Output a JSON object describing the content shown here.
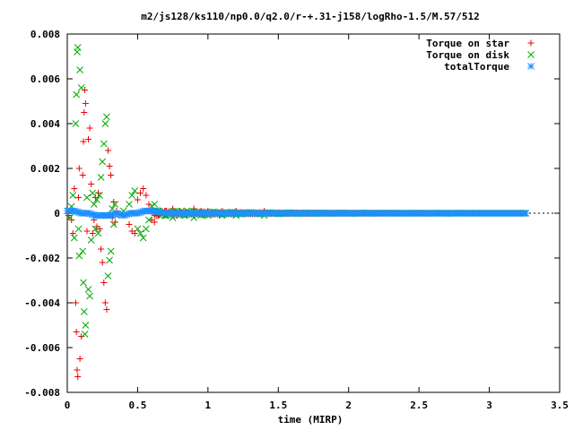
{
  "chart_data": {
    "type": "scatter",
    "title": "m2/js128/ks110/np0.0/q2.0/r-+.31-j158/logRho-1.5/M.57/512",
    "xlabel": "time (MIRP)",
    "ylabel": "",
    "xlim": [
      0,
      3.5
    ],
    "ylim": [
      -0.008,
      0.008
    ],
    "x_ticks": [
      "0",
      "0.5",
      "1",
      "1.5",
      "2",
      "2.5",
      "3",
      "3.5"
    ],
    "y_ticks": [
      "0.008",
      "0.006",
      "0.004",
      "0.002",
      "0",
      "-0.002",
      "-0.004",
      "-0.006",
      "-0.008"
    ],
    "grid": false,
    "legend_position": "top-right",
    "series": [
      {
        "name": "Torque on star",
        "marker": "plus",
        "color": "#ee0000",
        "points": [
          [
            0.01,
            -0.0001
          ],
          [
            0.02,
            0.0001
          ],
          [
            0.03,
            -0.0003
          ],
          [
            0.04,
            -0.0009
          ],
          [
            0.05,
            0.0011
          ],
          [
            0.06,
            -0.004
          ],
          [
            0.065,
            -0.0053
          ],
          [
            0.07,
            -0.007
          ],
          [
            0.075,
            -0.0073
          ],
          [
            0.08,
            0.0007
          ],
          [
            0.085,
            0.002
          ],
          [
            0.09,
            -0.0065
          ],
          [
            0.1,
            -0.0055
          ],
          [
            0.11,
            0.0017
          ],
          [
            0.115,
            0.0032
          ],
          [
            0.12,
            0.0045
          ],
          [
            0.125,
            0.0055
          ],
          [
            0.13,
            0.0049
          ],
          [
            0.14,
            -0.0008
          ],
          [
            0.15,
            0.0033
          ],
          [
            0.16,
            0.0038
          ],
          [
            0.17,
            0.0013
          ],
          [
            0.18,
            -0.0009
          ],
          [
            0.19,
            -0.0003
          ],
          [
            0.2,
            0.0007
          ],
          [
            0.21,
            -0.0006
          ],
          [
            0.22,
            0.0009
          ],
          [
            0.23,
            -0.0007
          ],
          [
            0.24,
            -0.0016
          ],
          [
            0.25,
            -0.0022
          ],
          [
            0.26,
            -0.0031
          ],
          [
            0.27,
            -0.004
          ],
          [
            0.28,
            -0.0043
          ],
          [
            0.29,
            0.0028
          ],
          [
            0.3,
            0.0021
          ],
          [
            0.31,
            0.0017
          ],
          [
            0.32,
            -0.0002
          ],
          [
            0.33,
            0.0005
          ],
          [
            0.34,
            -0.0004
          ],
          [
            0.35,
            0.0001
          ],
          [
            0.4,
            -0.0001
          ],
          [
            0.44,
            -0.0005
          ],
          [
            0.46,
            -0.0008
          ],
          [
            0.48,
            -0.0009
          ],
          [
            0.5,
            0.0006
          ],
          [
            0.52,
            0.0009
          ],
          [
            0.54,
            0.0011
          ],
          [
            0.56,
            0.0008
          ],
          [
            0.58,
            0.0004
          ],
          [
            0.6,
            -0.0003
          ],
          [
            0.62,
            -0.0004
          ],
          [
            0.65,
            -0.0001
          ],
          [
            0.7,
            0.0001
          ],
          [
            0.75,
            0.0002
          ],
          [
            0.8,
            0.0001
          ],
          [
            0.85,
            -0.0001
          ],
          [
            0.9,
            0.0002
          ],
          [
            0.95,
            0.0001
          ],
          [
            1.0,
            0.0001
          ],
          [
            1.1,
            0.0001
          ],
          [
            1.2,
            0.0001
          ],
          [
            1.3,
            0.0
          ],
          [
            1.4,
            0.0001
          ],
          [
            1.5,
            0.0
          ],
          [
            1.7,
            0.0
          ],
          [
            1.9,
            0.0
          ],
          [
            2.1,
            0.0
          ],
          [
            2.3,
            0.0
          ],
          [
            2.5,
            0.0
          ],
          [
            2.7,
            0.0
          ],
          [
            2.9,
            0.0
          ],
          [
            3.1,
            0.0
          ],
          [
            3.25,
            0.0
          ]
        ]
      },
      {
        "name": "Torque on disk",
        "marker": "cross",
        "color": "#00aa00",
        "points": [
          [
            0.01,
            0.0001
          ],
          [
            0.02,
            -0.0002
          ],
          [
            0.03,
            0.0003
          ],
          [
            0.04,
            0.0008
          ],
          [
            0.05,
            -0.0011
          ],
          [
            0.06,
            0.004
          ],
          [
            0.065,
            0.0053
          ],
          [
            0.07,
            0.0072
          ],
          [
            0.075,
            0.0074
          ],
          [
            0.08,
            -0.0007
          ],
          [
            0.085,
            -0.0019
          ],
          [
            0.09,
            0.0064
          ],
          [
            0.1,
            0.0056
          ],
          [
            0.11,
            -0.0017
          ],
          [
            0.115,
            -0.0031
          ],
          [
            0.12,
            -0.0044
          ],
          [
            0.125,
            -0.0054
          ],
          [
            0.13,
            -0.005
          ],
          [
            0.14,
            0.0007
          ],
          [
            0.15,
            -0.0034
          ],
          [
            0.16,
            -0.0037
          ],
          [
            0.17,
            -0.0012
          ],
          [
            0.18,
            0.0009
          ],
          [
            0.19,
            0.0004
          ],
          [
            0.2,
            -0.0007
          ],
          [
            0.21,
            0.0006
          ],
          [
            0.22,
            -0.0009
          ],
          [
            0.23,
            0.0008
          ],
          [
            0.24,
            0.0016
          ],
          [
            0.25,
            0.0023
          ],
          [
            0.26,
            0.0031
          ],
          [
            0.27,
            0.004
          ],
          [
            0.28,
            0.0043
          ],
          [
            0.29,
            -0.0028
          ],
          [
            0.3,
            -0.0021
          ],
          [
            0.31,
            -0.0017
          ],
          [
            0.32,
            0.0002
          ],
          [
            0.33,
            -0.0005
          ],
          [
            0.34,
            0.0004
          ],
          [
            0.35,
            -0.0001
          ],
          [
            0.4,
            0.0001
          ],
          [
            0.44,
            0.0004
          ],
          [
            0.46,
            0.0008
          ],
          [
            0.48,
            0.001
          ],
          [
            0.5,
            -0.0007
          ],
          [
            0.52,
            -0.0009
          ],
          [
            0.54,
            -0.0011
          ],
          [
            0.56,
            -0.0007
          ],
          [
            0.58,
            -0.0003
          ],
          [
            0.6,
            0.0003
          ],
          [
            0.62,
            0.0004
          ],
          [
            0.65,
            0.0001
          ],
          [
            0.7,
            -0.0001
          ],
          [
            0.75,
            -0.0002
          ],
          [
            0.8,
            -0.0001
          ],
          [
            0.85,
            0.0001
          ],
          [
            0.9,
            -0.0002
          ],
          [
            0.95,
            -0.0001
          ],
          [
            1.0,
            -0.0001
          ],
          [
            1.1,
            -0.0001
          ],
          [
            1.2,
            -0.0001
          ],
          [
            1.3,
            0.0
          ],
          [
            1.4,
            -0.0001
          ],
          [
            1.5,
            0.0
          ],
          [
            1.7,
            0.0
          ],
          [
            1.9,
            0.0
          ],
          [
            2.1,
            0.0
          ],
          [
            2.3,
            0.0
          ],
          [
            2.5,
            0.0
          ],
          [
            2.7,
            0.0
          ],
          [
            2.9,
            0.0
          ],
          [
            3.1,
            0.0
          ],
          [
            3.25,
            0.0
          ]
        ]
      },
      {
        "name": "totalTorque",
        "marker": "star",
        "color": "#1e90ff",
        "points": [
          [
            0.0,
            0.0001
          ],
          [
            0.05,
            0.0001
          ],
          [
            0.1,
            0.0
          ],
          [
            0.15,
            0.0
          ],
          [
            0.2,
            -0.0001
          ],
          [
            0.25,
            -0.0001
          ],
          [
            0.3,
            -0.0001
          ],
          [
            0.35,
            0.0
          ],
          [
            0.4,
            -0.0001
          ],
          [
            0.45,
            0.0
          ],
          [
            0.5,
            0.0
          ],
          [
            0.55,
            0.0001
          ],
          [
            0.6,
            0.0001
          ],
          [
            0.7,
            0.0
          ],
          [
            0.8,
            0.0
          ],
          [
            0.9,
            0.0
          ],
          [
            1.0,
            0.0
          ],
          [
            1.2,
            0.0
          ],
          [
            1.4,
            0.0
          ],
          [
            1.6,
            0.0
          ],
          [
            1.8,
            0.0
          ],
          [
            2.0,
            0.0
          ],
          [
            2.2,
            0.0
          ],
          [
            2.4,
            0.0
          ],
          [
            2.6,
            0.0
          ],
          [
            2.8,
            0.0
          ],
          [
            3.0,
            0.0
          ],
          [
            3.2,
            0.0
          ],
          [
            3.26,
            0.0
          ]
        ]
      }
    ]
  }
}
